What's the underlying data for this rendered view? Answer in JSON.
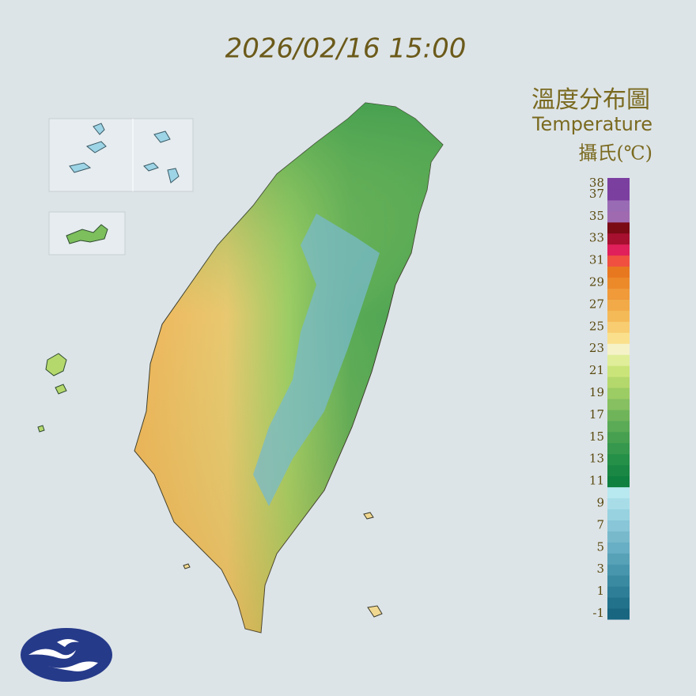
{
  "header": {
    "timestamp": "2026/02/16 15:00",
    "title": "溫度分布圖",
    "subtitle": "Temperature",
    "unit": "攝氏(℃)"
  },
  "legend": {
    "lim": [
      -1,
      39
    ],
    "ticks": [
      38,
      37,
      35,
      33,
      31,
      29,
      27,
      25,
      23,
      21,
      19,
      17,
      15,
      13,
      11,
      9,
      7,
      5,
      3,
      1,
      -1
    ],
    "colors": [
      "#186680",
      "#22728c",
      "#2e7e98",
      "#3a8aa2",
      "#4896ae",
      "#58a2b8",
      "#68aec4",
      "#78bacc",
      "#88c6d8",
      "#98d2e0",
      "#a8dde8",
      "#b8e8f0",
      "#0f8040",
      "#1a8844",
      "#259048",
      "#35984c",
      "#46a050",
      "#5aaa56",
      "#70b45a",
      "#86c060",
      "#9ccc64",
      "#b4d86c",
      "#cbe47a",
      "#e0ee9a",
      "#f6f2c8",
      "#fae08c",
      "#f8cc70",
      "#f5ba58",
      "#f2aa48",
      "#f09a3a",
      "#ec8a2a",
      "#e87820",
      "#f05040",
      "#e0205a",
      "#a81030",
      "#7a0a14",
      "#a06ab0",
      "#9a6bb5",
      "#7b3fa0",
      "#7b3fa0"
    ]
  }
}
